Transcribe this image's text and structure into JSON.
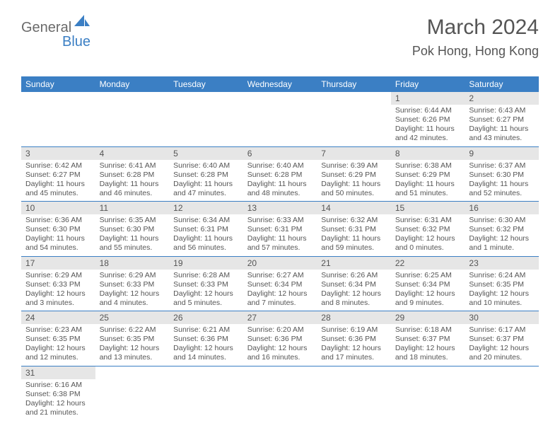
{
  "logo": {
    "text1": "General",
    "text2": "Blue"
  },
  "title": "March 2024",
  "location": "Pok Hong, Hong Kong",
  "day_headers": [
    "Sunday",
    "Monday",
    "Tuesday",
    "Wednesday",
    "Thursday",
    "Friday",
    "Saturday"
  ],
  "accent_color": "#3b7fc4",
  "header_bg": "#e6e6e6",
  "weeks": [
    [
      null,
      null,
      null,
      null,
      null,
      {
        "num": "1",
        "sunrise": "Sunrise: 6:44 AM",
        "sunset": "Sunset: 6:26 PM",
        "daylight": "Daylight: 11 hours and 42 minutes."
      },
      {
        "num": "2",
        "sunrise": "Sunrise: 6:43 AM",
        "sunset": "Sunset: 6:27 PM",
        "daylight": "Daylight: 11 hours and 43 minutes."
      }
    ],
    [
      {
        "num": "3",
        "sunrise": "Sunrise: 6:42 AM",
        "sunset": "Sunset: 6:27 PM",
        "daylight": "Daylight: 11 hours and 45 minutes."
      },
      {
        "num": "4",
        "sunrise": "Sunrise: 6:41 AM",
        "sunset": "Sunset: 6:28 PM",
        "daylight": "Daylight: 11 hours and 46 minutes."
      },
      {
        "num": "5",
        "sunrise": "Sunrise: 6:40 AM",
        "sunset": "Sunset: 6:28 PM",
        "daylight": "Daylight: 11 hours and 47 minutes."
      },
      {
        "num": "6",
        "sunrise": "Sunrise: 6:40 AM",
        "sunset": "Sunset: 6:28 PM",
        "daylight": "Daylight: 11 hours and 48 minutes."
      },
      {
        "num": "7",
        "sunrise": "Sunrise: 6:39 AM",
        "sunset": "Sunset: 6:29 PM",
        "daylight": "Daylight: 11 hours and 50 minutes."
      },
      {
        "num": "8",
        "sunrise": "Sunrise: 6:38 AM",
        "sunset": "Sunset: 6:29 PM",
        "daylight": "Daylight: 11 hours and 51 minutes."
      },
      {
        "num": "9",
        "sunrise": "Sunrise: 6:37 AM",
        "sunset": "Sunset: 6:30 PM",
        "daylight": "Daylight: 11 hours and 52 minutes."
      }
    ],
    [
      {
        "num": "10",
        "sunrise": "Sunrise: 6:36 AM",
        "sunset": "Sunset: 6:30 PM",
        "daylight": "Daylight: 11 hours and 54 minutes."
      },
      {
        "num": "11",
        "sunrise": "Sunrise: 6:35 AM",
        "sunset": "Sunset: 6:30 PM",
        "daylight": "Daylight: 11 hours and 55 minutes."
      },
      {
        "num": "12",
        "sunrise": "Sunrise: 6:34 AM",
        "sunset": "Sunset: 6:31 PM",
        "daylight": "Daylight: 11 hours and 56 minutes."
      },
      {
        "num": "13",
        "sunrise": "Sunrise: 6:33 AM",
        "sunset": "Sunset: 6:31 PM",
        "daylight": "Daylight: 11 hours and 57 minutes."
      },
      {
        "num": "14",
        "sunrise": "Sunrise: 6:32 AM",
        "sunset": "Sunset: 6:31 PM",
        "daylight": "Daylight: 11 hours and 59 minutes."
      },
      {
        "num": "15",
        "sunrise": "Sunrise: 6:31 AM",
        "sunset": "Sunset: 6:32 PM",
        "daylight": "Daylight: 12 hours and 0 minutes."
      },
      {
        "num": "16",
        "sunrise": "Sunrise: 6:30 AM",
        "sunset": "Sunset: 6:32 PM",
        "daylight": "Daylight: 12 hours and 1 minute."
      }
    ],
    [
      {
        "num": "17",
        "sunrise": "Sunrise: 6:29 AM",
        "sunset": "Sunset: 6:33 PM",
        "daylight": "Daylight: 12 hours and 3 minutes."
      },
      {
        "num": "18",
        "sunrise": "Sunrise: 6:29 AM",
        "sunset": "Sunset: 6:33 PM",
        "daylight": "Daylight: 12 hours and 4 minutes."
      },
      {
        "num": "19",
        "sunrise": "Sunrise: 6:28 AM",
        "sunset": "Sunset: 6:33 PM",
        "daylight": "Daylight: 12 hours and 5 minutes."
      },
      {
        "num": "20",
        "sunrise": "Sunrise: 6:27 AM",
        "sunset": "Sunset: 6:34 PM",
        "daylight": "Daylight: 12 hours and 7 minutes."
      },
      {
        "num": "21",
        "sunrise": "Sunrise: 6:26 AM",
        "sunset": "Sunset: 6:34 PM",
        "daylight": "Daylight: 12 hours and 8 minutes."
      },
      {
        "num": "22",
        "sunrise": "Sunrise: 6:25 AM",
        "sunset": "Sunset: 6:34 PM",
        "daylight": "Daylight: 12 hours and 9 minutes."
      },
      {
        "num": "23",
        "sunrise": "Sunrise: 6:24 AM",
        "sunset": "Sunset: 6:35 PM",
        "daylight": "Daylight: 12 hours and 10 minutes."
      }
    ],
    [
      {
        "num": "24",
        "sunrise": "Sunrise: 6:23 AM",
        "sunset": "Sunset: 6:35 PM",
        "daylight": "Daylight: 12 hours and 12 minutes."
      },
      {
        "num": "25",
        "sunrise": "Sunrise: 6:22 AM",
        "sunset": "Sunset: 6:35 PM",
        "daylight": "Daylight: 12 hours and 13 minutes."
      },
      {
        "num": "26",
        "sunrise": "Sunrise: 6:21 AM",
        "sunset": "Sunset: 6:36 PM",
        "daylight": "Daylight: 12 hours and 14 minutes."
      },
      {
        "num": "27",
        "sunrise": "Sunrise: 6:20 AM",
        "sunset": "Sunset: 6:36 PM",
        "daylight": "Daylight: 12 hours and 16 minutes."
      },
      {
        "num": "28",
        "sunrise": "Sunrise: 6:19 AM",
        "sunset": "Sunset: 6:36 PM",
        "daylight": "Daylight: 12 hours and 17 minutes."
      },
      {
        "num": "29",
        "sunrise": "Sunrise: 6:18 AM",
        "sunset": "Sunset: 6:37 PM",
        "daylight": "Daylight: 12 hours and 18 minutes."
      },
      {
        "num": "30",
        "sunrise": "Sunrise: 6:17 AM",
        "sunset": "Sunset: 6:37 PM",
        "daylight": "Daylight: 12 hours and 20 minutes."
      }
    ],
    [
      {
        "num": "31",
        "sunrise": "Sunrise: 6:16 AM",
        "sunset": "Sunset: 6:38 PM",
        "daylight": "Daylight: 12 hours and 21 minutes."
      },
      null,
      null,
      null,
      null,
      null,
      null
    ]
  ]
}
